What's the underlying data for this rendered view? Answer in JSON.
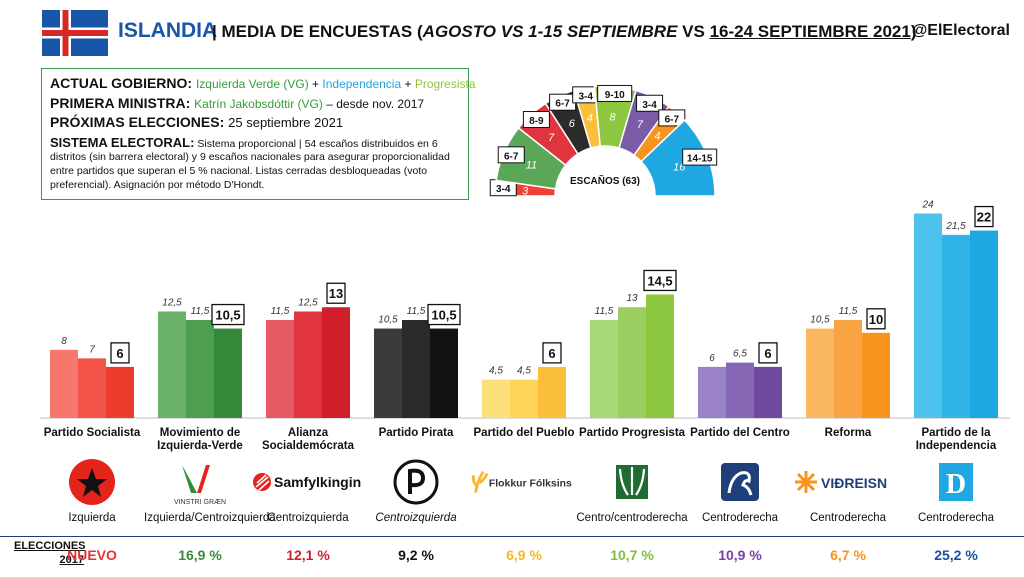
{
  "header": {
    "country": "ISLANDIA",
    "title_sep": "| MEDIA DE ENCUESTAS (",
    "title_italic": "AGOSTO VS 1-15 SEPTIEMBRE",
    "title_mid": " VS ",
    "title_underline": "16-24 SEPTIEMBRE 2021",
    "title_close": ")",
    "handle": "@ElElectoral"
  },
  "info": {
    "gov_label": "ACTUAL GOBIERNO:",
    "gov_p1": "Izquierda Verde (VG)",
    "gov_plus1": " + ",
    "gov_p2": "Independencia",
    "gov_plus2": " + ",
    "gov_p3": "Progresista",
    "pm_label": "PRIMERA MINISTRA:",
    "pm_name": "Katrín Jakobsdóttir (VG)",
    "pm_since": " – desde nov. 2017",
    "next_label": "PRÓXIMAS ELECCIONES:",
    "next_date": "25 septiembre 2021",
    "sys_label": "SISTEMA ELECTORAL:",
    "sys_text": "Sistema proporcional | 54 escaños distribuidos en 6 distritos (sin barrera electoral) y 9 escaños nacionales para asegurar proporcionalidad entre partidos que superan el 5 % nacional. Listas cerradas desbloqueadas (voto preferencial). Asignación por método D'Hondt."
  },
  "seats": {
    "label": "ESCAÑOS (63)",
    "segments": [
      {
        "value": "3",
        "range": "3-4",
        "color": "#ef4136"
      },
      {
        "value": "11",
        "range": "6-7",
        "color": "#5aa857"
      },
      {
        "value": "7",
        "range": "8-9",
        "color": "#e0353f"
      },
      {
        "value": "6",
        "range": "6-7",
        "color": "#2b2b2b"
      },
      {
        "value": "4",
        "range": "3-4",
        "color": "#fbbf3c"
      },
      {
        "value": "8",
        "range": "9-10",
        "color": "#8dc63f"
      },
      {
        "value": "7",
        "range": "3-4",
        "color": "#7b5aa6"
      },
      {
        "value": "4",
        "range": "6-7",
        "color": "#f7941d"
      },
      {
        "value": "16",
        "range": "14-15",
        "color": "#1ea7e1"
      }
    ]
  },
  "chart_data": {
    "type": "bar",
    "categories": [
      "Partido Socialista",
      "Movimiento de Izquierda-Verde",
      "Alianza Socialdemócrata",
      "Partido Pirata",
      "Partido del Pueblo",
      "Partido Progresista",
      "Partido del Centro",
      "Reforma",
      "Partido de la Independencia"
    ],
    "series_values": [
      {
        "values": [
          8,
          12.5,
          11.5,
          10.5,
          4.5,
          11.5,
          6,
          10.5,
          24
        ],
        "labels": [
          "8",
          "12,5",
          "11,5",
          "10,5",
          "4,5",
          "11,5",
          "6",
          "10,5",
          "24"
        ]
      },
      {
        "values": [
          7,
          11.5,
          12.5,
          11.5,
          4.5,
          13,
          6.5,
          11.5,
          21.5
        ],
        "labels": [
          "7",
          "11,5",
          "12,5",
          "11,5",
          "4,5",
          "13",
          "6,5",
          "11,5",
          "21,5"
        ]
      },
      {
        "values": [
          6,
          10.5,
          13,
          10.5,
          6,
          14.5,
          6,
          10,
          22
        ],
        "labels": [
          "6",
          "10,5",
          "13",
          "10,5",
          "6",
          "14,5",
          "6",
          "10",
          "22"
        ]
      }
    ],
    "colors": [
      [
        "#f7766e",
        "#f2544a",
        "#ef3b2c"
      ],
      [
        "#6ab26a",
        "#4e9e4f",
        "#36883a"
      ],
      [
        "#e65a62",
        "#e0353f",
        "#d01f2a"
      ],
      [
        "#3b3b3b",
        "#2a2a2a",
        "#111111"
      ],
      [
        "#fde07a",
        "#fdd35a",
        "#fbbf3c"
      ],
      [
        "#a9d877",
        "#9ccd60",
        "#8dc63f"
      ],
      [
        "#9a82c6",
        "#8667b5",
        "#6d4a9e"
      ],
      [
        "#fbb760",
        "#f9a443",
        "#f7941d"
      ],
      [
        "#4dc2ec",
        "#31b5e8",
        "#1ea7e1"
      ]
    ],
    "ylim": [
      0,
      25
    ]
  },
  "category_lines": [
    [
      "Partido Socialista"
    ],
    [
      "Movimiento de",
      "Izquierda-Verde"
    ],
    [
      "Alianza",
      "Socialdemócrata"
    ],
    [
      "Partido Pirata"
    ],
    [
      "Partido del Pueblo"
    ],
    [
      "Partido Progresista"
    ],
    [
      "Partido del Centro"
    ],
    [
      "Reforma"
    ],
    [
      "Partido de la",
      "Independencia"
    ]
  ],
  "logos": [
    {
      "icon": "red-star-icon",
      "position": "Izquierda",
      "italic": false
    },
    {
      "icon": "vinstri-graen-logo",
      "text": "VINSTRI GRÆN",
      "position": "Izquierda/Centroizquierda",
      "italic": false
    },
    {
      "icon": "samfylkingin-logo",
      "text": "Samfylkingin",
      "position": "Centroizquierda",
      "italic": false
    },
    {
      "icon": "pirate-logo",
      "position": "Centroizquierda",
      "italic": true
    },
    {
      "icon": "flokkur-folksins-logo",
      "text": "Flokkur Fólksins",
      "position": "",
      "italic": false
    },
    {
      "icon": "framsokn-logo",
      "position": "Centro/centroderecha",
      "italic": false
    },
    {
      "icon": "midflokkurinn-logo",
      "position": "Centroderecha",
      "italic": false
    },
    {
      "icon": "vidreisn-logo",
      "text": "VIÐREISN",
      "position": "Centroderecha",
      "italic": false
    },
    {
      "icon": "d-logo",
      "text": "D",
      "position": "Centroderecha",
      "italic": false
    }
  ],
  "footer": {
    "label_line1": "ELECCIONES",
    "label_line2": "2017",
    "results": [
      {
        "text": "NUEVO",
        "color": "#e3342f"
      },
      {
        "text": "16,9 %",
        "color": "#3a8a3a"
      },
      {
        "text": "12,1 %",
        "color": "#d01f2a"
      },
      {
        "text": "9,2 %",
        "color": "#111111"
      },
      {
        "text": "6,9 %",
        "color": "#f5b82e"
      },
      {
        "text": "10,7 %",
        "color": "#7fbf3a"
      },
      {
        "text": "10,9 %",
        "color": "#7b3fa6"
      },
      {
        "text": "6,7 %",
        "color": "#f7941d"
      },
      {
        "text": "25,2 %",
        "color": "#1a4f9c"
      }
    ]
  }
}
